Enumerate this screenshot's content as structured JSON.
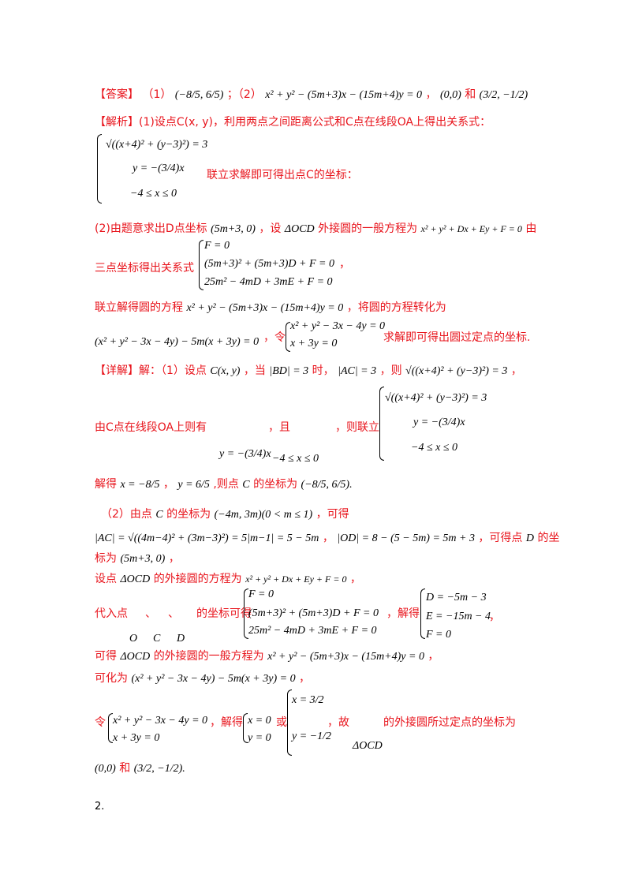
{
  "answer": {
    "label": "【答案】",
    "part1": "（1）",
    "p1_point": "(−8/5, 6/5)",
    "sep": "；（2）",
    "p2_eq": "x² + y² − (5m+3)x − (15m+4)y = 0",
    "comma": "，",
    "p2_pt1": "(0,0)",
    "and": "和",
    "p2_pt2": "(3/2, −1/2)"
  },
  "analysis": {
    "label": "【解析】",
    "l1": "(1)设点C(x, y)，利用两点之间距离公式和C点在线段OA上得出关系式：",
    "sys1_a": "√((x+4)² + (y−3)²) = 3",
    "sys1_b": "y = −(3/4)x",
    "sys1_c": "−4 ≤ x ≤ 0",
    "l1_end": "联立求解即可得出点C的坐标：",
    "l2_a": "(2)由题意求出D点坐标",
    "l2_d": "(5m+3, 0)",
    "l2_b": "，设",
    "l2_t": "ΔOCD",
    "l2_c": "外接圆的一般方程为",
    "l2_eq": "x² + y² + Dx + Ey + F = 0",
    "l2_e": "由",
    "l3": "三点坐标得出关系式",
    "sys2_a": "F = 0",
    "sys2_b": "(5m+3)² + (5m+3)D + F = 0",
    "sys2_c": "25m² − 4mD + 3mE + F = 0",
    "l3_end": "，",
    "l4_a": "联立解得圆的方程",
    "l4_eq": "x² + y² − (5m+3)x − (15m+4)y = 0",
    "l4_b": "，将圆的方程转化为",
    "l5_eq": "(x² + y² − 3x − 4y) − 5m(x + 3y) = 0",
    "l5_a": "，令",
    "sys3_a": "x² + y² − 3x − 4y = 0",
    "sys3_b": "x + 3y = 0",
    "l5_b": "求解即可得出圆过定点的坐标."
  },
  "detail": {
    "label": "【详解】",
    "l1_a": "解：（1）设点",
    "l1_c": "C(x, y)",
    "l1_b": "，当",
    "l1_bd": "|BD| = 3",
    "l1_d": "时，",
    "l1_ac": "|AC| = 3",
    "l1_e": "，则",
    "l1_eq": "√((x+4)² + (y−3)²) = 3",
    "l1_f": "，",
    "l2_a": "由C点在线段OA上则有",
    "l2_b": "，且",
    "l2_c": "，则联立",
    "l2_y": "y = −(3/4)x",
    "l2_x": "−4 ≤ x ≤ 0",
    "sys4_a": "√((x+4)² + (y−3)²) = 3",
    "sys4_b": "y = −(3/4)x",
    "sys4_c": "−4 ≤ x ≤ 0",
    "l3_a": "解得",
    "l3_x": "x = −8/5",
    "l3_sep": "，",
    "l3_y": "y = 6/5",
    "l3_b": ",则点",
    "l3_c": "C",
    "l3_d": "的坐标为",
    "l3_pt": "(−8/5, 6/5).",
    "l4_a": "（2）由点",
    "l4_c": "C",
    "l4_b": "的坐标为",
    "l4_pt": "(−4m, 3m)(0 < m ≤ 1)",
    "l4_e": "，可得",
    "l5_eq": "|AC| = √((4m−4)² + (3m−3)²) = 5|m−1| = 5 − 5m",
    "l5_sep": "，",
    "l5_od": "|OD| = 8 − (5 − 5m) = 5m + 3",
    "l5_a": "，可得点",
    "l5_d": "D",
    "l5_b": "的坐",
    "l6_a": "标为",
    "l6_pt": "(5m+3, 0)",
    "l6_b": "，",
    "l7_a": "设点",
    "l7_t": "ΔOCD",
    "l7_b": "的外接圆的方程为",
    "l7_eq": "x² + y² + Dx + Ey + F = 0",
    "l7_c": "，",
    "l8_a": "代入点",
    "l8_sep1": "、",
    "l8_sep2": "、",
    "l8_b": "的坐标可得",
    "sys5_a": "F = 0",
    "sys5_b": "(5m+3)² + (5m+3)D + F = 0",
    "sys5_c": "25m² − 4mD + 3mE + F = 0",
    "l8_c": "，解得",
    "sys6_a": "D = −5m − 3",
    "sys6_b": "E = −15m − 4",
    "sys6_c": "F = 0",
    "l8_d": "，",
    "l8_O": "O",
    "l8_C": "C",
    "l8_D": "D",
    "l9_a": "可得",
    "l9_t": "ΔOCD",
    "l9_b": "的外接圆的一般方程为",
    "l9_eq": "x² + y² − (5m+3)x − (15m+4)y = 0",
    "l9_c": "，",
    "l10_a": "可化为",
    "l10_eq": "(x² + y² − 3x − 4y) − 5m(x + 3y) = 0",
    "l10_b": "，",
    "l11_a": "令",
    "sys7_a": "x² + y² − 3x − 4y = 0",
    "sys7_b": "x + 3y = 0",
    "l11_b": "，解得",
    "sys8_a": "x = 0",
    "sys8_b": "y = 0",
    "l11_c": "或",
    "sys9_a": "x = 3/2",
    "sys9_b": "y = −1/2",
    "l11_d": "，故",
    "l11_t": "ΔOCD",
    "l11_e": "的外接圆所过定点的坐标为",
    "l12_pt1": "(0,0)",
    "l12_and": "和",
    "l12_pt2": "(3/2, −1/2)."
  },
  "footer": "2."
}
